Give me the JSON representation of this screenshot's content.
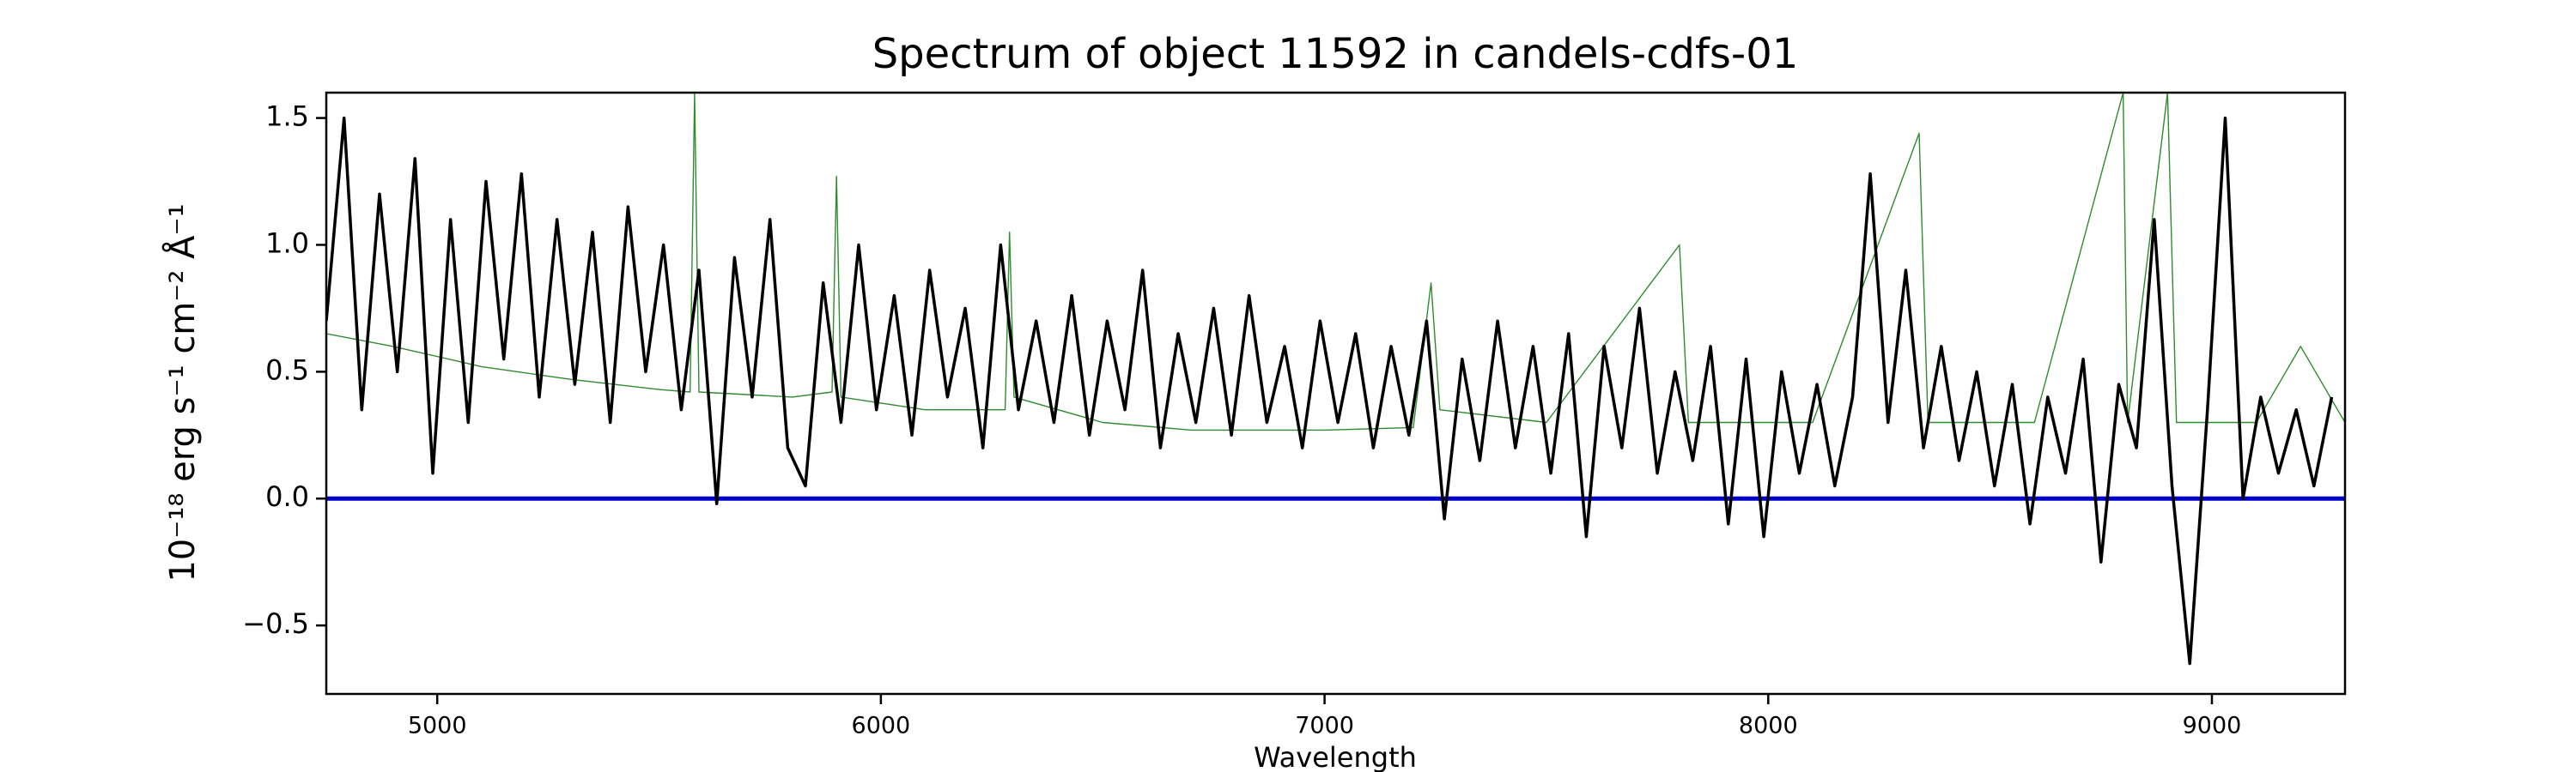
{
  "chart_data": {
    "type": "line",
    "title": "Spectrum of object 11592 in candels-cdfs-01",
    "x_label": "Wavelength",
    "y_label": "10⁻¹⁸ erg s⁻¹ cm⁻² Å⁻¹",
    "xlim": [
      4750,
      9300
    ],
    "ylim": [
      -0.77,
      1.6
    ],
    "xticks": [
      5000,
      6000,
      7000,
      8000,
      9000
    ],
    "yticks": [
      {
        "value": -0.5,
        "label": "−0.5"
      },
      {
        "value": 0,
        "label": "0.0"
      },
      0.5,
      {
        "value": 1,
        "label": "1.0"
      },
      1.5
    ],
    "grid": false,
    "series": [
      {
        "color": "#2e8b2e",
        "width": 1.4,
        "x": [
          4750,
          4900,
          5100,
          5300,
          5500,
          5570,
          5580,
          5590,
          5800,
          5890,
          5900,
          5910,
          6100,
          6280,
          6290,
          6300,
          6500,
          6700,
          7000,
          7200,
          7240,
          7260,
          7500,
          7800,
          7820,
          8100,
          8340,
          8360,
          8600,
          8800,
          8810,
          8900,
          8920,
          9100,
          9200,
          9300
        ],
        "values": [
          0.65,
          0.6,
          0.52,
          0.47,
          0.43,
          0.42,
          1.6,
          0.42,
          0.4,
          0.42,
          1.27,
          0.4,
          0.35,
          0.35,
          1.05,
          0.4,
          0.3,
          0.27,
          0.27,
          0.28,
          0.85,
          0.35,
          0.3,
          1.0,
          0.3,
          0.3,
          1.44,
          0.3,
          0.3,
          1.6,
          0.3,
          1.6,
          0.3,
          0.3,
          0.6,
          0.3
        ]
      },
      {
        "color": "#0000cc",
        "width": 5,
        "x": [
          4750,
          9300
        ],
        "values": [
          0,
          0
        ]
      },
      {
        "color": "#000000",
        "width": 3.5,
        "x": [
          4750,
          4790,
          4830,
          4870,
          4910,
          4950,
          4990,
          5030,
          5070,
          5110,
          5150,
          5190,
          5230,
          5270,
          5310,
          5350,
          5390,
          5430,
          5470,
          5510,
          5550,
          5590,
          5630,
          5670,
          5710,
          5750,
          5790,
          5830,
          5870,
          5910,
          5950,
          5990,
          6030,
          6070,
          6110,
          6150,
          6190,
          6230,
          6270,
          6310,
          6350,
          6390,
          6430,
          6470,
          6510,
          6550,
          6590,
          6630,
          6670,
          6710,
          6750,
          6790,
          6830,
          6870,
          6910,
          6950,
          6990,
          7030,
          7070,
          7110,
          7150,
          7190,
          7230,
          7270,
          7310,
          7350,
          7390,
          7430,
          7470,
          7510,
          7550,
          7590,
          7630,
          7670,
          7710,
          7750,
          7790,
          7830,
          7870,
          7910,
          7950,
          7990,
          8030,
          8070,
          8110,
          8150,
          8190,
          8230,
          8270,
          8310,
          8350,
          8390,
          8430,
          8470,
          8510,
          8550,
          8590,
          8630,
          8670,
          8710,
          8750,
          8790,
          8830,
          8870,
          8910,
          8950,
          8990,
          9030,
          9070,
          9110,
          9150,
          9190,
          9230,
          9270
        ],
        "values": [
          0.7,
          1.5,
          0.35,
          1.2,
          0.5,
          1.34,
          0.1,
          1.1,
          0.3,
          1.25,
          0.55,
          1.28,
          0.4,
          1.1,
          0.45,
          1.05,
          0.3,
          1.15,
          0.5,
          1.0,
          0.35,
          0.9,
          -0.02,
          0.95,
          0.4,
          1.1,
          0.2,
          0.05,
          0.85,
          0.3,
          1.0,
          0.35,
          0.8,
          0.25,
          0.9,
          0.4,
          0.75,
          0.2,
          1.0,
          0.35,
          0.7,
          0.3,
          0.8,
          0.25,
          0.7,
          0.35,
          0.9,
          0.2,
          0.65,
          0.3,
          0.75,
          0.25,
          0.8,
          0.3,
          0.6,
          0.2,
          0.7,
          0.3,
          0.65,
          0.2,
          0.6,
          0.25,
          0.7,
          -0.08,
          0.55,
          0.15,
          0.7,
          0.2,
          0.6,
          0.1,
          0.65,
          -0.15,
          0.6,
          0.2,
          0.75,
          0.1,
          0.5,
          0.15,
          0.6,
          -0.1,
          0.55,
          -0.15,
          0.5,
          0.1,
          0.45,
          0.05,
          0.4,
          1.28,
          0.3,
          0.9,
          0.2,
          0.6,
          0.15,
          0.5,
          0.05,
          0.45,
          -0.1,
          0.4,
          0.1,
          0.55,
          -0.25,
          0.45,
          0.2,
          1.1,
          0.05,
          -0.65,
          0.35,
          1.5,
          0.0,
          0.4,
          0.1,
          0.35,
          0.05,
          0.4
        ]
      }
    ]
  }
}
